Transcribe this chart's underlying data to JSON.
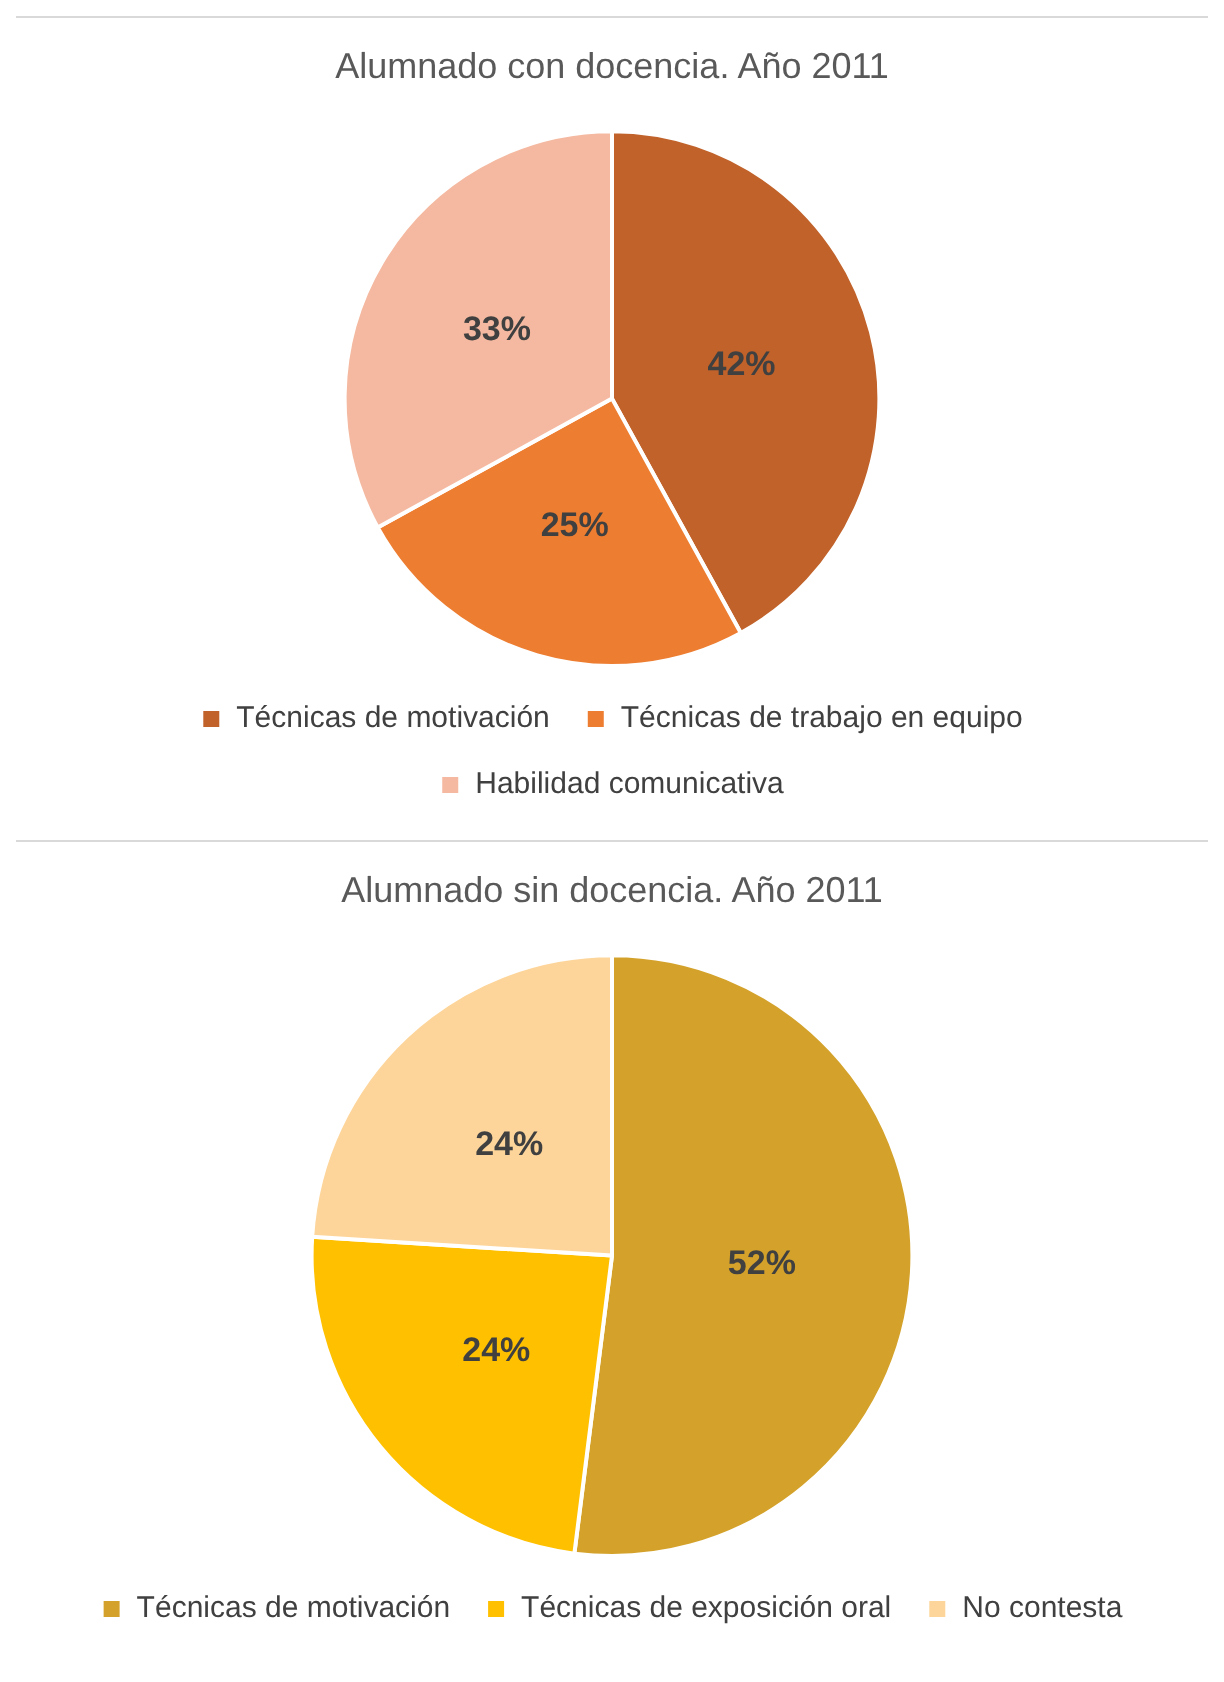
{
  "chart_data": [
    {
      "type": "pie",
      "title": "Alumnado con docencia. Año 2011",
      "categories": [
        "Técnicas de motivación",
        "Técnicas de trabajo en equipo",
        "Habilidad comunicativa"
      ],
      "values": [
        42,
        25,
        33
      ],
      "value_labels": [
        "42%",
        "25%",
        "33%"
      ],
      "colors": [
        "#c0622a",
        "#ed7d31",
        "#f4b9a0"
      ],
      "legend": "bottom"
    },
    {
      "type": "pie",
      "title": "Alumnado sin docencia. Año 2011",
      "categories": [
        "Técnicas de motivación",
        "Técnicas de exposición oral",
        "No contesta"
      ],
      "values": [
        52,
        24,
        24
      ],
      "value_labels": [
        "52%",
        "24%",
        "24%"
      ],
      "colors": [
        "#d4a22a",
        "#ffc000",
        "#fdd59a"
      ],
      "legend": "bottom"
    }
  ]
}
